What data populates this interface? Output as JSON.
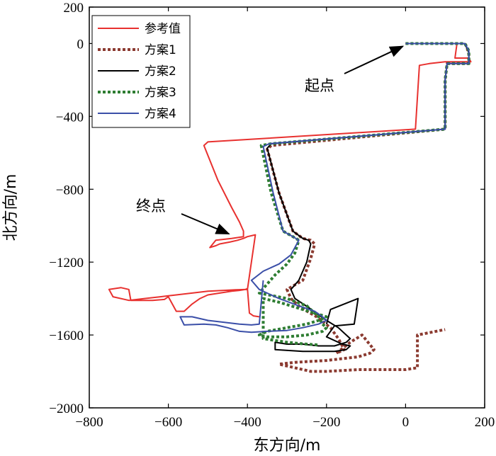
{
  "chart_data": {
    "type": "line",
    "title": "",
    "xlabel": "东方向/m",
    "ylabel": "北方向/m",
    "xlim": [
      -800,
      200
    ],
    "ylim": [
      -2000,
      200
    ],
    "xticks": [
      -800,
      -600,
      -400,
      -200,
      0,
      200
    ],
    "yticks": [
      200,
      0,
      -400,
      -800,
      -1200,
      -1600,
      -2000
    ],
    "ytick_labels": [
      "200",
      "0",
      "−400",
      "−800",
      "−1200",
      "−1600",
      "−2000"
    ],
    "xtick_labels": [
      "−800",
      "−600",
      "−400",
      "−200",
      "0",
      "200"
    ],
    "legend_position": "top-left",
    "grid": false,
    "annotations": [
      {
        "id": "start",
        "text": "起点",
        "target": [
          0,
          0
        ]
      },
      {
        "id": "end",
        "text": "终点",
        "target": [
          -440,
          -1060
        ]
      }
    ],
    "series": [
      {
        "name": "参考值",
        "color": "#e8312f",
        "dash": "solid",
        "x": [
          0,
          130,
          125,
          160,
          165,
          100,
          60,
          35,
          25,
          -500,
          -510,
          -475,
          -440,
          -420,
          -410,
          -410,
          -440,
          -480,
          -495,
          -480,
          -470,
          -445,
          -425,
          -410,
          -400,
          -380,
          -400,
          -430,
          -460,
          -500,
          -540,
          -580,
          -600,
          -620,
          -660,
          -700,
          -740,
          -750,
          -720,
          -700,
          -695,
          -660,
          -640,
          -610,
          -600,
          -580,
          -560,
          -540,
          -520,
          -500,
          -470,
          -440,
          -420,
          -405,
          -400,
          -395,
          -385,
          -370
        ],
        "y": [
          0,
          0,
          -80,
          -80,
          -100,
          -100,
          -110,
          -120,
          -470,
          -540,
          -560,
          -750,
          -900,
          -980,
          -1030,
          -1060,
          -1070,
          -1080,
          -1120,
          -1110,
          -1100,
          -1090,
          -1080,
          -1070,
          -1060,
          -1050,
          -1350,
          -1352,
          -1355,
          -1360,
          -1370,
          -1380,
          -1385,
          -1390,
          -1400,
          -1410,
          -1390,
          -1350,
          -1340,
          -1350,
          -1410,
          -1410,
          -1410,
          -1405,
          -1390,
          -1470,
          -1470,
          -1430,
          -1400,
          -1380,
          -1370,
          -1360,
          -1355,
          -1350,
          -1345,
          -1480,
          -1495,
          -1500
        ]
      },
      {
        "name": "方案1",
        "color": "#8b3a30",
        "dash": "dotted",
        "x": [
          0,
          150,
          155,
          160,
          160,
          105,
          100,
          100,
          -340,
          -350,
          -320,
          -285,
          -260,
          -240,
          -230,
          -240,
          -260,
          -300,
          -290,
          -265,
          -225,
          -190,
          -170,
          -155,
          -175,
          -140,
          -110,
          -80,
          -90,
          -120,
          -160,
          -200,
          -240,
          -280,
          -320,
          -280,
          -240,
          -200,
          -160,
          -120,
          -80,
          -40,
          0,
          30,
          30,
          100
        ],
        "y": [
          0,
          0,
          -20,
          -60,
          -110,
          -110,
          -200,
          -470,
          -560,
          -580,
          -820,
          -1030,
          -1070,
          -1080,
          -1100,
          -1180,
          -1300,
          -1350,
          -1400,
          -1450,
          -1500,
          -1560,
          -1620,
          -1680,
          -1700,
          -1640,
          -1600,
          -1680,
          -1700,
          -1720,
          -1730,
          -1740,
          -1745,
          -1750,
          -1760,
          -1780,
          -1800,
          -1800,
          -1795,
          -1790,
          -1790,
          -1790,
          -1790,
          -1780,
          -1600,
          -1570
        ]
      },
      {
        "name": "方案2",
        "color": "#000000",
        "dash": "solid",
        "x": [
          0,
          150,
          160,
          160,
          105,
          100,
          100,
          -340,
          -350,
          -320,
          -285,
          -260,
          -245,
          -240,
          -250,
          -270,
          -290,
          -280,
          -245,
          -200,
          -170,
          -150,
          -140,
          -150,
          -180,
          -220,
          -260,
          -300,
          -330,
          -330,
          -260,
          -180,
          -150,
          -140,
          -160,
          -200,
          -180,
          -130,
          -120,
          -190,
          -200
        ],
        "y": [
          0,
          0,
          -50,
          -110,
          -110,
          -200,
          -470,
          -550,
          -575,
          -820,
          -1030,
          -1070,
          -1080,
          -1100,
          -1200,
          -1300,
          -1350,
          -1400,
          -1450,
          -1520,
          -1560,
          -1600,
          -1620,
          -1640,
          -1660,
          -1660,
          -1650,
          -1650,
          -1640,
          -1680,
          -1690,
          -1690,
          -1680,
          -1660,
          -1650,
          -1610,
          -1550,
          -1540,
          -1400,
          -1460,
          -1540
        ]
      },
      {
        "name": "方案3",
        "color": "#2e7d32",
        "dash": "dotted",
        "x": [
          0,
          150,
          160,
          160,
          105,
          100,
          100,
          -340,
          -365,
          -340,
          -310,
          -285,
          -270,
          -280,
          -300,
          -330,
          -370,
          -300,
          -250,
          -220,
          -210,
          -200,
          -210,
          -250,
          -300,
          -350,
          -370,
          -350,
          -300,
          -250,
          -220,
          -200,
          -230,
          -260,
          -290,
          -320,
          -340,
          -360,
          -360,
          -300,
          -250,
          -220
        ],
        "y": [
          0,
          0,
          -40,
          -110,
          -110,
          -200,
          -470,
          -550,
          -560,
          -820,
          -1030,
          -1060,
          -1080,
          -1150,
          -1210,
          -1270,
          -1370,
          -1400,
          -1440,
          -1500,
          -1540,
          -1560,
          -1580,
          -1600,
          -1610,
          -1610,
          -1600,
          -1580,
          -1560,
          -1540,
          -1520,
          -1500,
          -1480,
          -1460,
          -1440,
          -1420,
          -1410,
          -1400,
          -1620,
          -1640,
          -1650,
          -1655
        ]
      },
      {
        "name": "方案4",
        "color": "#3b4fa8",
        "dash": "solid",
        "x": [
          0,
          150,
          160,
          160,
          105,
          100,
          100,
          -345,
          -360,
          -335,
          -310,
          -285,
          -270,
          -290,
          -320,
          -360,
          -390,
          -370,
          -320,
          -270,
          -230,
          -210,
          -200,
          -220,
          -260,
          -300,
          -350,
          -390,
          -420,
          -450,
          -480,
          -510,
          -560,
          -570,
          -540,
          -500,
          -460,
          -420,
          -390,
          -370,
          -360
        ],
        "y": [
          0,
          0,
          -40,
          -110,
          -110,
          -200,
          -470,
          -550,
          -565,
          -820,
          -1030,
          -1060,
          -1080,
          -1160,
          -1210,
          -1250,
          -1300,
          -1350,
          -1400,
          -1440,
          -1470,
          -1500,
          -1520,
          -1540,
          -1560,
          -1575,
          -1580,
          -1585,
          -1580,
          -1560,
          -1545,
          -1540,
          -1545,
          -1500,
          -1500,
          -1520,
          -1530,
          -1540,
          -1545,
          -1540,
          -1300
        ]
      }
    ]
  }
}
